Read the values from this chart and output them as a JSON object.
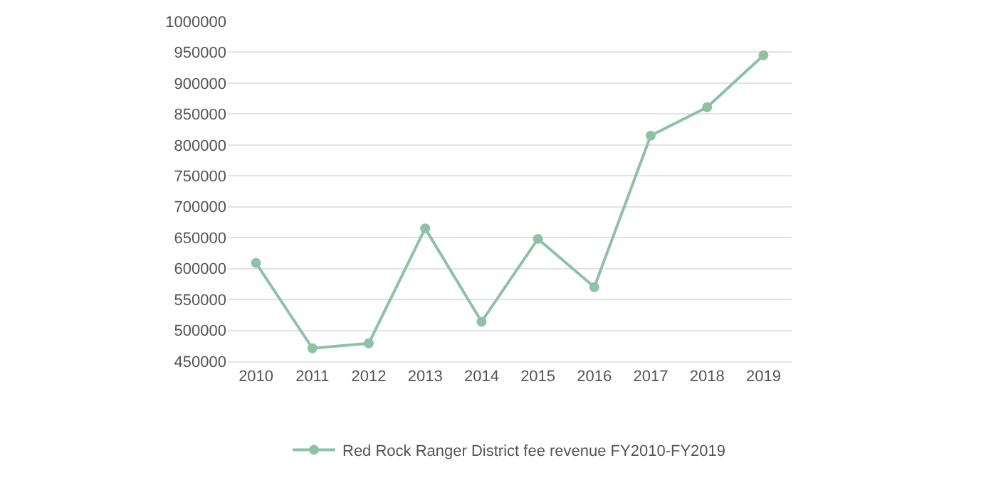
{
  "chart_data": {
    "type": "line",
    "categories": [
      "2010",
      "2011",
      "2012",
      "2013",
      "2014",
      "2015",
      "2016",
      "2017",
      "2018",
      "2019"
    ],
    "series": [
      {
        "name": "Red Rock Ranger District fee revenue FY2010-FY2019",
        "color": "#8fc1a6",
        "values": [
          609000,
          471000,
          479000,
          665000,
          514000,
          648000,
          570000,
          815000,
          861000,
          945000
        ]
      }
    ],
    "ylim": [
      450000,
      1000000
    ],
    "yticks": [
      450000,
      500000,
      550000,
      600000,
      650000,
      700000,
      750000,
      800000,
      850000,
      900000,
      950000,
      1000000
    ],
    "grid": "y",
    "legend": "bottom",
    "marker": "circle",
    "line_style": "solid"
  }
}
